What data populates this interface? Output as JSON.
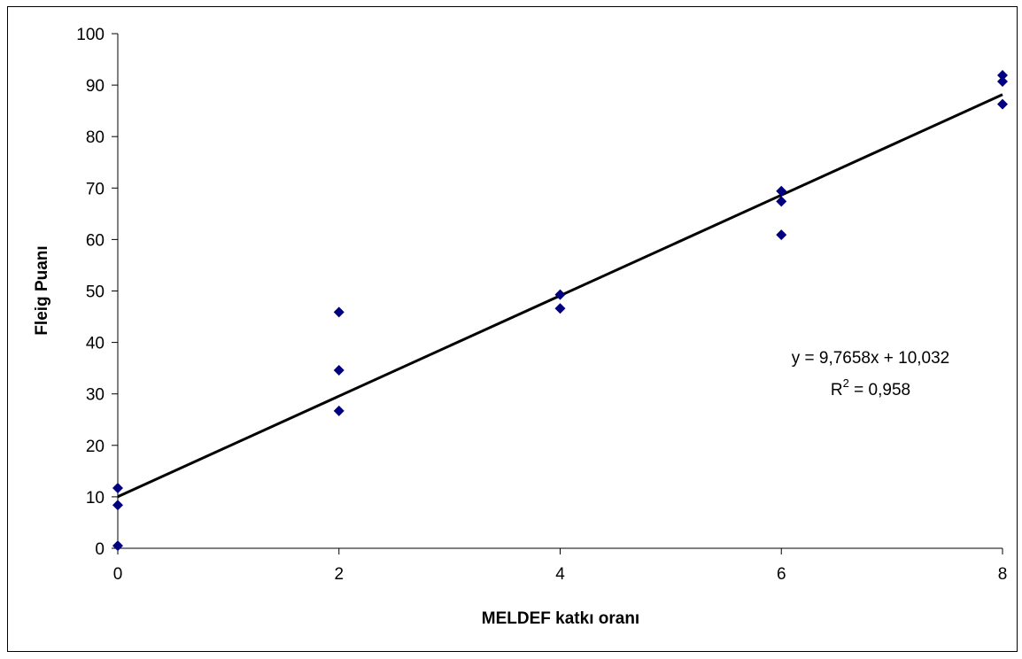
{
  "chart_data": {
    "type": "scatter",
    "xlabel": "MELDEF katkı oranı",
    "ylabel": "Fleig Puanı",
    "xlim": [
      0,
      8
    ],
    "ylim": [
      0,
      100
    ],
    "x_ticks": [
      0,
      2,
      4,
      6,
      8
    ],
    "y_ticks": [
      0,
      10,
      20,
      30,
      40,
      50,
      60,
      70,
      80,
      90,
      100
    ],
    "grid": false,
    "legend": "none",
    "marker_color": "#000080",
    "trendline_color": "#000000",
    "series": [
      {
        "points": [
          {
            "x": 0,
            "y": 11.7
          },
          {
            "x": 0,
            "y": 8.4
          },
          {
            "x": 0,
            "y": 0.5
          },
          {
            "x": 2,
            "y": 45.9
          },
          {
            "x": 2,
            "y": 34.6
          },
          {
            "x": 2,
            "y": 26.7
          },
          {
            "x": 4,
            "y": 49.3
          },
          {
            "x": 4,
            "y": 46.6
          },
          {
            "x": 6,
            "y": 69.4
          },
          {
            "x": 6,
            "y": 67.4
          },
          {
            "x": 6,
            "y": 60.9
          },
          {
            "x": 8,
            "y": 91.9
          },
          {
            "x": 8,
            "y": 90.7
          },
          {
            "x": 8,
            "y": 86.3
          }
        ]
      }
    ],
    "trendline": {
      "slope": 9.7658,
      "intercept": 10.032,
      "equation": "y = 9,7658x + 10,032",
      "r2_label": "R",
      "r2_sup": "2",
      "r2_value": " = 0,958"
    }
  }
}
